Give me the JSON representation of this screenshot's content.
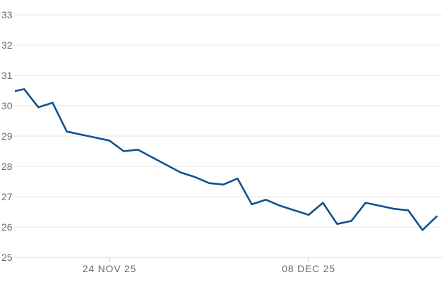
{
  "chart_data": {
    "type": "line",
    "title": "",
    "xlabel": "",
    "ylabel": "",
    "legend": "none",
    "grid": true,
    "ylim": [
      25,
      33
    ],
    "yticks": [
      33,
      32,
      31,
      30,
      29,
      28,
      27,
      26,
      25
    ],
    "x": [
      "17 NOV 25",
      "18 NOV 25",
      "19 NOV 25",
      "20 NOV 25",
      "21 NOV 25",
      "22 NOV 25",
      "23 NOV 25",
      "24 NOV 25",
      "25 NOV 25",
      "26 NOV 25",
      "27 NOV 25",
      "28 NOV 25",
      "29 NOV 25",
      "30 NOV 25",
      "01 DEC 25",
      "02 DEC 25",
      "03 DEC 25",
      "04 DEC 25",
      "05 DEC 25",
      "06 DEC 25",
      "07 DEC 25",
      "08 DEC 25",
      "09 DEC 25",
      "10 DEC 25",
      "11 DEC 25",
      "12 DEC 25",
      "13 DEC 25",
      "14 DEC 25",
      "15 DEC 25",
      "16 DEC 25",
      "17 DEC 25"
    ],
    "values": [
      30.45,
      30.55,
      29.95,
      30.1,
      29.15,
      29.05,
      28.95,
      28.85,
      28.5,
      28.55,
      28.3,
      28.05,
      27.8,
      27.65,
      27.45,
      27.4,
      27.6,
      26.75,
      26.9,
      26.7,
      26.55,
      26.4,
      26.8,
      26.1,
      26.2,
      26.8,
      26.7,
      26.6,
      26.55,
      25.9,
      26.35
    ],
    "xticks": [
      {
        "index": 7,
        "label": "24 NOV 25"
      },
      {
        "index": 21,
        "label": "08 DEC 25"
      }
    ],
    "colors": {
      "line": "#11518f",
      "grid": "#e6e6e6",
      "axis_line": "#d9d9d9",
      "tick": "#c6c6c6",
      "label": "#6b6b6b",
      "background": "#ffffff"
    }
  }
}
